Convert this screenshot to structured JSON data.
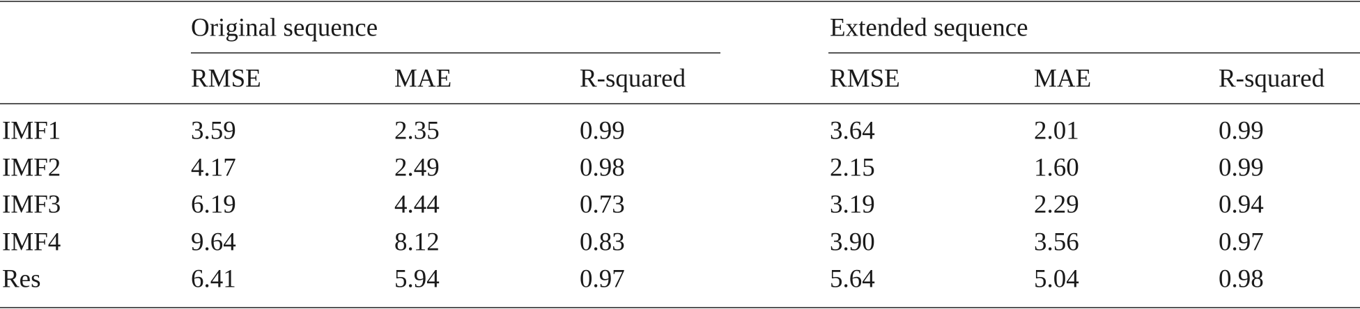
{
  "table": {
    "groups": [
      "Original sequence",
      "Extended sequence"
    ],
    "columns": [
      [
        "RMSE",
        "MAE",
        "R-squared"
      ],
      [
        "RMSE",
        "MAE",
        "R-squared"
      ]
    ],
    "rows": [
      [
        "IMF1",
        "3.59",
        "2.35",
        "0.99",
        "3.64",
        "2.01",
        "0.99"
      ],
      [
        "IMF2",
        "4.17",
        "2.49",
        "0.98",
        "2.15",
        "1.60",
        "0.99"
      ],
      [
        "IMF3",
        "6.19",
        "4.44",
        "0.73",
        "3.19",
        "2.29",
        "0.94"
      ],
      [
        "IMF4",
        "9.64",
        "8.12",
        "0.83",
        "3.90",
        "3.56",
        "0.97"
      ],
      [
        "Res",
        "6.41",
        "5.94",
        "0.97",
        "5.64",
        "5.04",
        "0.98"
      ]
    ]
  }
}
